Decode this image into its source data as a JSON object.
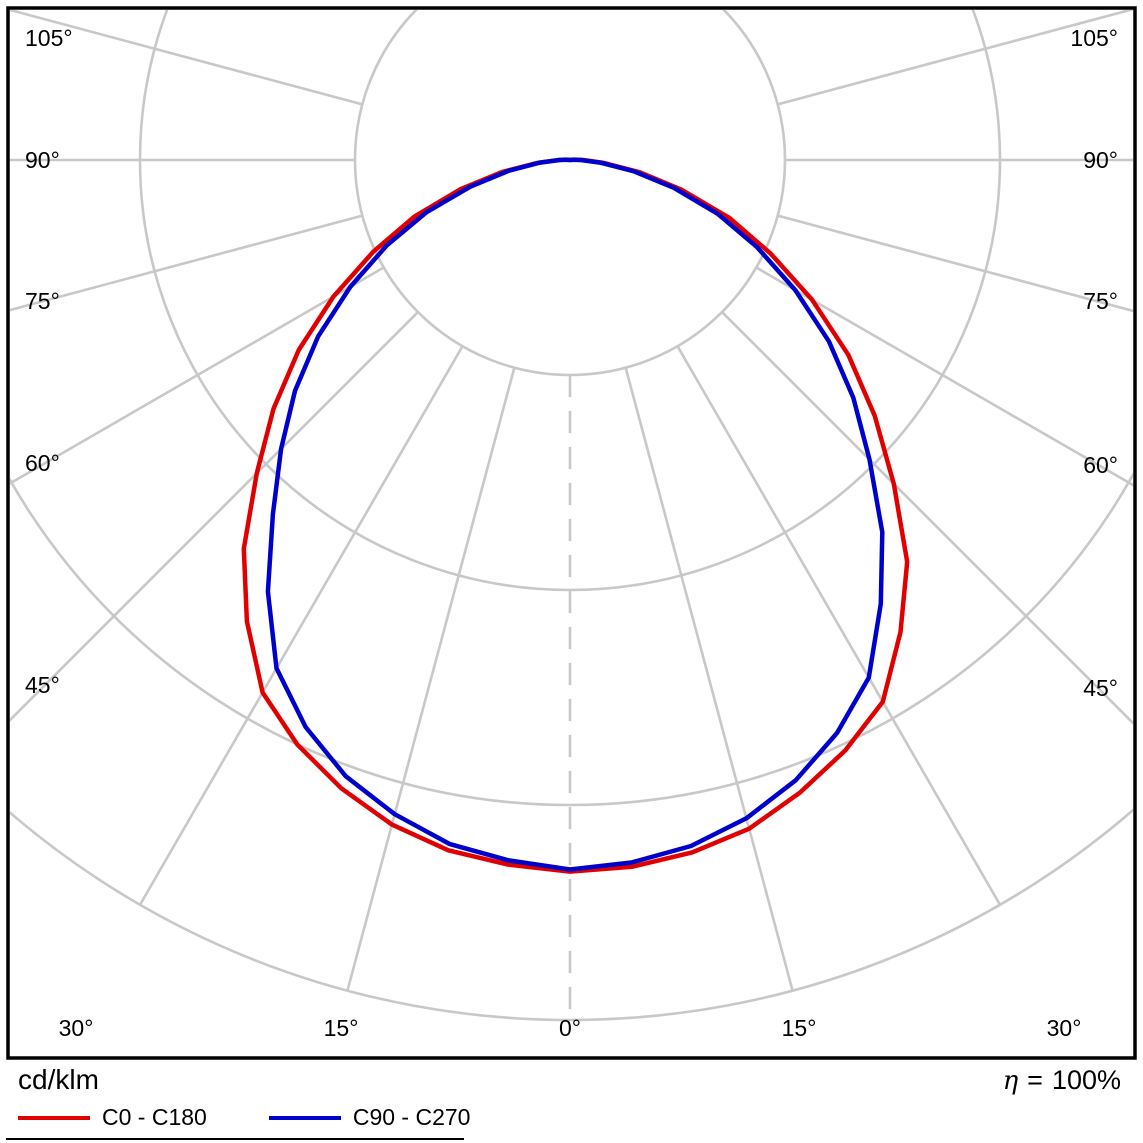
{
  "footer": {
    "unit_label": "cd/klm",
    "efficiency": {
      "symbol": "η",
      "equals": "=",
      "value": "100%"
    }
  },
  "legend": [
    {
      "label": "C0 - C180",
      "color": "#e10000"
    },
    {
      "label": "C90 - C270",
      "color": "#0000cc"
    }
  ],
  "chart_data": {
    "type": "polar",
    "subtype": "photometric-luminous-intensity-distribution",
    "units": "cd/klm",
    "efficiency_text": "η = 100%",
    "grid": {
      "ring_count": 4,
      "ring_labels_shown": false,
      "radial_step_deg": 15,
      "max_angle_deg": 105,
      "color": "#c8c8c8"
    },
    "angle_labels": [
      {
        "deg": 0,
        "text": "0°"
      },
      {
        "deg": 15,
        "text": "15°"
      },
      {
        "deg": 30,
        "text": "30°"
      },
      {
        "deg": 45,
        "text": "45°"
      },
      {
        "deg": 60,
        "text": "60°"
      },
      {
        "deg": 75,
        "text": "75°"
      },
      {
        "deg": 90,
        "text": "90°"
      },
      {
        "deg": 105,
        "text": "105°"
      }
    ],
    "gamma_deg": [
      0,
      5,
      10,
      15,
      20,
      25,
      30,
      35,
      40,
      45,
      50,
      55,
      60,
      65,
      70,
      75,
      80,
      85,
      90,
      95,
      100
    ],
    "r_unit": "grid-ring divisions (outer ring = 4; ring values not labeled in image)",
    "series": [
      {
        "name": "C0 - C180",
        "color": "#e10000",
        "r_right": [
          3.31,
          3.3,
          3.27,
          3.22,
          3.13,
          3.03,
          2.91,
          2.68,
          2.44,
          2.13,
          1.85,
          1.58,
          1.3,
          1.03,
          0.79,
          0.54,
          0.33,
          0.16,
          0.06,
          0.02,
          0.0
        ],
        "r_left": [
          3.31,
          3.29,
          3.26,
          3.2,
          3.11,
          3.0,
          2.86,
          2.62,
          2.36,
          2.06,
          1.8,
          1.54,
          1.27,
          1.01,
          0.77,
          0.53,
          0.32,
          0.15,
          0.05,
          0.02,
          0.0
        ]
      },
      {
        "name": "C90 - C270",
        "color": "#0000cc",
        "r_right": [
          3.3,
          3.28,
          3.24,
          3.17,
          3.07,
          2.94,
          2.78,
          2.52,
          2.26,
          1.97,
          1.72,
          1.47,
          1.21,
          0.96,
          0.73,
          0.5,
          0.3,
          0.14,
          0.05,
          0.01,
          0.0
        ],
        "r_left": [
          3.3,
          3.27,
          3.23,
          3.15,
          3.05,
          2.91,
          2.73,
          2.45,
          2.15,
          1.9,
          1.67,
          1.43,
          1.18,
          0.94,
          0.71,
          0.48,
          0.29,
          0.14,
          0.05,
          0.01,
          0.0
        ]
      }
    ]
  }
}
